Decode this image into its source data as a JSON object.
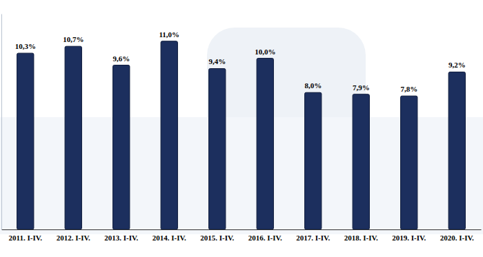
{
  "chart_data": {
    "type": "bar",
    "categories": [
      "2011. I-IV.",
      "2012. I-IV.",
      "2013. I-IV.",
      "2014. I-IV.",
      "2015. I-IV.",
      "2016. I-IV.",
      "2017. I-IV.",
      "2018. I-IV.",
      "2019. I-IV.",
      "2020. I-IV."
    ],
    "values": [
      10.3,
      10.7,
      9.6,
      11.0,
      9.4,
      10.0,
      8.0,
      7.9,
      7.8,
      9.2
    ],
    "value_labels": [
      "10,3%",
      "10,7%",
      "9,6%",
      "11,0%",
      "9,4%",
      "10,0%",
      "8,0%",
      "7,9%",
      "7,8%",
      "9,2%"
    ],
    "color": "#1c2f5e",
    "ylim": [
      0,
      12.6
    ],
    "data_labels": true,
    "tick_labels": "x"
  }
}
